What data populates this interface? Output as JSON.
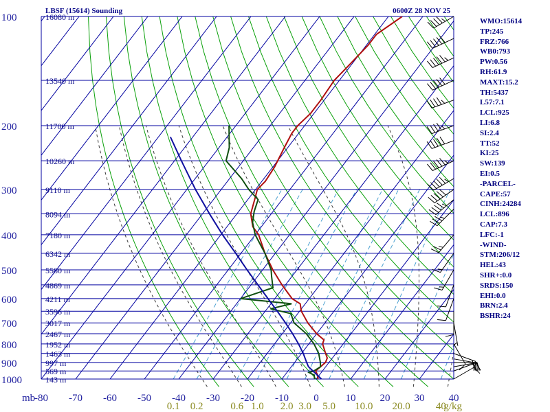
{
  "chart_data": {
    "type": "skew-t log-p sounding",
    "title": "LBSF (15614) Sounding",
    "valid_time": "0600Z 28 NOV 25",
    "pressure_unit_label": "mb",
    "p_range": [
      1000,
      100
    ],
    "t_range_at_bottom": [
      -80,
      40
    ],
    "pressure_ticks": [
      {
        "p": 100,
        "label": "100"
      },
      {
        "p": 200,
        "label": "200"
      },
      {
        "p": 300,
        "label": "300"
      },
      {
        "p": 400,
        "label": "400"
      },
      {
        "p": 500,
        "label": "500"
      },
      {
        "p": 600,
        "label": "600"
      },
      {
        "p": 700,
        "label": "700"
      },
      {
        "p": 800,
        "label": "800"
      },
      {
        "p": 900,
        "label": "900"
      },
      {
        "p": 1000,
        "label": "1000"
      }
    ],
    "extra_isobars": [
      150,
      250,
      350,
      450,
      550,
      650,
      750,
      850,
      950
    ],
    "temperature_ticks": [
      {
        "t": -80,
        "label": "-80"
      },
      {
        "t": -70,
        "label": "-70"
      },
      {
        "t": -60,
        "label": "-60"
      },
      {
        "t": -50,
        "label": "-50"
      },
      {
        "t": -40,
        "label": "-40"
      },
      {
        "t": -30,
        "label": "-30"
      },
      {
        "t": -20,
        "label": "-20"
      },
      {
        "t": -10,
        "label": "-10"
      },
      {
        "t": 0,
        "label": "0"
      },
      {
        "t": 10,
        "label": "10"
      },
      {
        "t": 20,
        "label": "20"
      },
      {
        "t": 30,
        "label": "30"
      },
      {
        "t": 40,
        "label": "40"
      }
    ],
    "height_labels": [
      {
        "p": 100,
        "label": "16080 m"
      },
      {
        "p": 150,
        "label": "13540 m"
      },
      {
        "p": 200,
        "label": "11700 m"
      },
      {
        "p": 250,
        "label": "10260 m"
      },
      {
        "p": 300,
        "label": "9110 m"
      },
      {
        "p": 350,
        "label": "8094 m"
      },
      {
        "p": 400,
        "label": "7180 m"
      },
      {
        "p": 450,
        "label": "6342 m"
      },
      {
        "p": 500,
        "label": "5580 m"
      },
      {
        "p": 550,
        "label": "4869 m"
      },
      {
        "p": 600,
        "label": "4211 m"
      },
      {
        "p": 650,
        "label": "3596 m"
      },
      {
        "p": 700,
        "label": "3017 m"
      },
      {
        "p": 750,
        "label": "2467 m"
      },
      {
        "p": 800,
        "label": "1952 m"
      },
      {
        "p": 850,
        "label": "1463 m"
      },
      {
        "p": 900,
        "label": "997 m"
      },
      {
        "p": 950,
        "label": "569 m"
      },
      {
        "p": 1000,
        "label": "143 m"
      }
    ],
    "mixing_ratio_labels": [
      {
        "w": 0.1,
        "label": "0.1"
      },
      {
        "w": 0.2,
        "label": "0.2"
      },
      {
        "w": 0.6,
        "label": "0.6"
      },
      {
        "w": 1.0,
        "label": "1.0"
      },
      {
        "w": 2.0,
        "label": "2.0"
      },
      {
        "w": 3.0,
        "label": "3.0"
      },
      {
        "w": 5.0,
        "label": "5.0"
      },
      {
        "w": 10.0,
        "label": "10.0"
      },
      {
        "w": 20.0,
        "label": "20.0"
      },
      {
        "w": 40.0,
        "label": "40"
      }
    ],
    "mixing_ratio_unit": "g/kg",
    "series": [
      {
        "name": "temperature",
        "color": "#b01010",
        "points": [
          {
            "p": 1000,
            "t": 0.5
          },
          {
            "p": 975,
            "t": -0.5
          },
          {
            "p": 950,
            "t": -2.0
          },
          {
            "p": 925,
            "t": -1.5
          },
          {
            "p": 900,
            "t": -1.0
          },
          {
            "p": 875,
            "t": -1.5
          },
          {
            "p": 850,
            "t": -3.0
          },
          {
            "p": 800,
            "t": -6.0
          },
          {
            "p": 780,
            "t": -6.5
          },
          {
            "p": 750,
            "t": -10.0
          },
          {
            "p": 700,
            "t": -15.0
          },
          {
            "p": 650,
            "t": -19.5
          },
          {
            "p": 620,
            "t": -21.5
          },
          {
            "p": 600,
            "t": -25.0
          },
          {
            "p": 550,
            "t": -31.0
          },
          {
            "p": 500,
            "t": -37.0
          },
          {
            "p": 450,
            "t": -43.0
          },
          {
            "p": 400,
            "t": -49.0
          },
          {
            "p": 380,
            "t": -52.5
          },
          {
            "p": 350,
            "t": -56.0
          },
          {
            "p": 320,
            "t": -58.0
          },
          {
            "p": 300,
            "t": -59.5
          },
          {
            "p": 285,
            "t": -59.0
          },
          {
            "p": 260,
            "t": -59.5
          },
          {
            "p": 230,
            "t": -61.0
          },
          {
            "p": 210,
            "t": -62.0
          },
          {
            "p": 200,
            "t": -62.0
          },
          {
            "p": 185,
            "t": -61.0
          },
          {
            "p": 170,
            "t": -61.0
          },
          {
            "p": 150,
            "t": -61.5
          },
          {
            "p": 135,
            "t": -60.5
          },
          {
            "p": 120,
            "t": -59.5
          },
          {
            "p": 112,
            "t": -59.5
          },
          {
            "p": 100,
            "t": -56.0
          }
        ]
      },
      {
        "name": "dewpoint",
        "color": "#105010",
        "points": [
          {
            "p": 1000,
            "t": -0.5
          },
          {
            "p": 975,
            "t": -1.5
          },
          {
            "p": 960,
            "t": -3.5
          },
          {
            "p": 950,
            "t": -2.5
          },
          {
            "p": 925,
            "t": -1.5
          },
          {
            "p": 900,
            "t": -2.5
          },
          {
            "p": 850,
            "t": -5.0
          },
          {
            "p": 800,
            "t": -8.5
          },
          {
            "p": 750,
            "t": -13.0
          },
          {
            "p": 700,
            "t": -19.0
          },
          {
            "p": 660,
            "t": -22.0
          },
          {
            "p": 640,
            "t": -29.0
          },
          {
            "p": 620,
            "t": -24.0
          },
          {
            "p": 600,
            "t": -40.0
          },
          {
            "p": 560,
            "t": -33.0
          },
          {
            "p": 520,
            "t": -36.0
          },
          {
            "p": 500,
            "t": -37.5
          },
          {
            "p": 450,
            "t": -43.0
          },
          {
            "p": 400,
            "t": -50.0
          },
          {
            "p": 370,
            "t": -53.5
          },
          {
            "p": 345,
            "t": -55.5
          },
          {
            "p": 320,
            "t": -57.0
          },
          {
            "p": 300,
            "t": -62.0
          },
          {
            "p": 280,
            "t": -66.5
          },
          {
            "p": 250,
            "t": -75.0
          },
          {
            "p": 230,
            "t": -77.0
          },
          {
            "p": 200,
            "t": -82.0
          }
        ]
      },
      {
        "name": "parcel",
        "color": "#1010a0",
        "points": [
          {
            "p": 1000,
            "t": 1.5
          },
          {
            "p": 925,
            "t": -5.0
          },
          {
            "p": 900,
            "t": -6.5
          },
          {
            "p": 850,
            "t": -9.5
          },
          {
            "p": 800,
            "t": -13.0
          },
          {
            "p": 750,
            "t": -17.0
          },
          {
            "p": 700,
            "t": -21.5
          },
          {
            "p": 650,
            "t": -26.5
          },
          {
            "p": 600,
            "t": -32.0
          },
          {
            "p": 550,
            "t": -38.0
          },
          {
            "p": 500,
            "t": -44.5
          },
          {
            "p": 450,
            "t": -51.5
          },
          {
            "p": 400,
            "t": -59.5
          },
          {
            "p": 350,
            "t": -68.0
          },
          {
            "p": 300,
            "t": -77.5
          },
          {
            "p": 250,
            "t": -88.0
          },
          {
            "p": 215,
            "t": -96.5
          }
        ]
      }
    ],
    "wind_barbs": [
      {
        "p": 100,
        "dir": 240,
        "spd": 45
      },
      {
        "p": 115,
        "dir": 245,
        "spd": 50
      },
      {
        "p": 130,
        "dir": 245,
        "spd": 55
      },
      {
        "p": 150,
        "dir": 245,
        "spd": 50
      },
      {
        "p": 170,
        "dir": 250,
        "spd": 45
      },
      {
        "p": 200,
        "dir": 250,
        "spd": 45
      },
      {
        "p": 220,
        "dir": 250,
        "spd": 50
      },
      {
        "p": 250,
        "dir": 245,
        "spd": 55
      },
      {
        "p": 280,
        "dir": 240,
        "spd": 55
      },
      {
        "p": 300,
        "dir": 235,
        "spd": 50
      },
      {
        "p": 320,
        "dir": 230,
        "spd": 45
      },
      {
        "p": 340,
        "dir": 225,
        "spd": 35
      },
      {
        "p": 400,
        "dir": 220,
        "spd": 25
      },
      {
        "p": 450,
        "dir": 215,
        "spd": 15
      },
      {
        "p": 500,
        "dir": 210,
        "spd": 15
      },
      {
        "p": 550,
        "dir": 200,
        "spd": 10
      },
      {
        "p": 600,
        "dir": 200,
        "spd": 10
      },
      {
        "p": 650,
        "dir": 180,
        "spd": 10
      },
      {
        "p": 700,
        "dir": 170,
        "spd": 5
      },
      {
        "p": 800,
        "dir": 150,
        "spd": 10
      },
      {
        "p": 850,
        "dir": 110,
        "spd": 15
      },
      {
        "p": 880,
        "dir": 100,
        "spd": 20
      },
      {
        "p": 900,
        "dir": 90,
        "spd": 20
      },
      {
        "p": 925,
        "dir": 80,
        "spd": 20
      },
      {
        "p": 950,
        "dir": 70,
        "spd": 15
      },
      {
        "p": 1000,
        "dir": 60,
        "spd": 10
      }
    ]
  },
  "indices": [
    "WMO:15614",
    "TP:245",
    "FRZ:766",
    "WB0:793",
    "PW:0.56",
    "RH:61.9",
    "MAXT:15.2",
    "TH:5437",
    "L57:7.1",
    "LCL:925",
    "LI:6.8",
    "SI:2.4",
    "TT:52",
    "KI:25",
    "SW:139",
    "EI:0.5",
    "-PARCEL-",
    "CAPE:57",
    "CINH:24284",
    "LCL:896",
    "CAP:7.3",
    "LFC:-1",
    "-WIND-",
    "STM:206/12",
    "HEL:43",
    "SHR+:0.0",
    "SRDS:150",
    "EHI:0.0",
    "BRN:2.4",
    "BSHR:24"
  ],
  "colors": {
    "isobar": "#0000a0",
    "isotherm": "#0000a0",
    "dry_adiabat": "#0aa00a",
    "moist_adiabat": "#3a3a3a",
    "mixing_ratio": "#4aa0d0",
    "temperature": "#b01010",
    "dewpoint": "#105010",
    "parcel": "#1010a0",
    "index_text": "#000080"
  }
}
